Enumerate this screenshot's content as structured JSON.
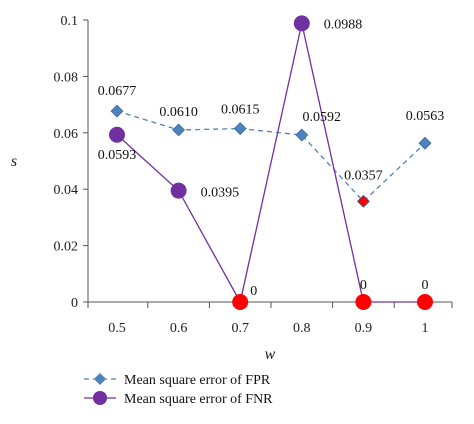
{
  "chart_data": {
    "type": "line",
    "x": [
      0.5,
      0.6,
      0.7,
      0.8,
      0.9,
      1
    ],
    "x_tick_labels": [
      "0.5",
      "0.6",
      "0.7",
      "0.8",
      "0.9",
      "1"
    ],
    "xlabel": "w",
    "ylabel": "s",
    "ylim": [
      0,
      0.1
    ],
    "y_ticks": [
      0,
      0.02,
      0.04,
      0.06,
      0.08,
      0.1
    ],
    "y_tick_labels": [
      "0",
      "0.02",
      "0.04",
      "0.06",
      "0.08",
      "0.1"
    ],
    "grid": false,
    "legend_position": "bottom",
    "series": [
      {
        "name": "Mean square error of FPR",
        "values": [
          0.0677,
          0.061,
          0.0615,
          0.0592,
          0.0357,
          0.0563
        ],
        "labels": [
          "0.0677",
          "0.0610",
          "0.0615",
          "0.0592",
          "0.0357",
          "0.0563"
        ],
        "color": "#4f81bd",
        "line_style": "dashed",
        "marker": "diamond",
        "highlight_color": "#ff0000"
      },
      {
        "name": "Mean square error of FNR",
        "values": [
          0.0593,
          0.0395,
          0,
          0.0988,
          0,
          0
        ],
        "labels": [
          "0.0593",
          "0.0395",
          "0",
          "0.0988",
          "0",
          "0"
        ],
        "color": "#7030a0",
        "line_style": "solid",
        "marker": "circle",
        "zero_marker_color": "#ff0000"
      }
    ]
  }
}
